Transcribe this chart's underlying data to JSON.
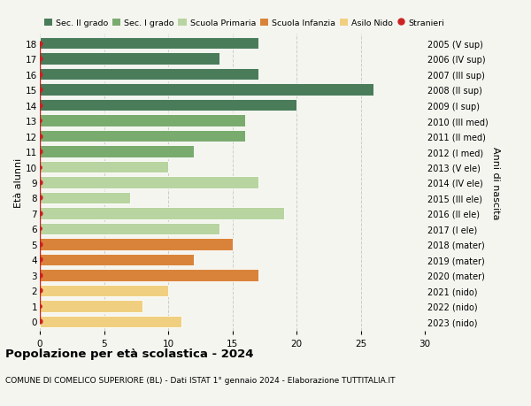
{
  "ages": [
    18,
    17,
    16,
    15,
    14,
    13,
    12,
    11,
    10,
    9,
    8,
    7,
    6,
    5,
    4,
    3,
    2,
    1,
    0
  ],
  "right_labels": [
    "2005 (V sup)",
    "2006 (IV sup)",
    "2007 (III sup)",
    "2008 (II sup)",
    "2009 (I sup)",
    "2010 (III med)",
    "2011 (II med)",
    "2012 (I med)",
    "2013 (V ele)",
    "2014 (IV ele)",
    "2015 (III ele)",
    "2016 (II ele)",
    "2017 (I ele)",
    "2018 (mater)",
    "2019 (mater)",
    "2020 (mater)",
    "2021 (nido)",
    "2022 (nido)",
    "2023 (nido)"
  ],
  "values": [
    17,
    14,
    17,
    26,
    20,
    16,
    16,
    12,
    10,
    17,
    7,
    19,
    14,
    15,
    12,
    17,
    10,
    8,
    11
  ],
  "bar_colors": [
    "#4a7c59",
    "#4a7c59",
    "#4a7c59",
    "#4a7c59",
    "#4a7c59",
    "#7aab6e",
    "#7aab6e",
    "#7aab6e",
    "#b8d4a0",
    "#b8d4a0",
    "#b8d4a0",
    "#b8d4a0",
    "#b8d4a0",
    "#d9833a",
    "#d9833a",
    "#d9833a",
    "#f0d080",
    "#f0d080",
    "#f0d080"
  ],
  "stranieri_values": [
    1,
    1,
    1,
    1,
    1,
    0,
    1,
    1,
    0,
    1,
    1,
    1,
    0,
    1,
    1,
    1,
    1,
    0,
    1
  ],
  "legend_labels": [
    "Sec. II grado",
    "Sec. I grado",
    "Scuola Primaria",
    "Scuola Infanzia",
    "Asilo Nido",
    "Stranieri"
  ],
  "legend_colors": [
    "#4a7c59",
    "#7aab6e",
    "#b8d4a0",
    "#d9833a",
    "#f0d080",
    "#cc2222"
  ],
  "title": "Popolazione per età scolastica - 2024",
  "subtitle": "COMUNE DI COMELICO SUPERIORE (BL) - Dati ISTAT 1° gennaio 2024 - Elaborazione TUTTITALIA.IT",
  "ylabel_left": "Età alunni",
  "ylabel_right": "Anni di nascita",
  "xlim": [
    0,
    30
  ],
  "xticks": [
    0,
    5,
    10,
    15,
    20,
    25,
    30
  ],
  "bg_color": "#f5f5f0",
  "grid_color": "#cccccc"
}
